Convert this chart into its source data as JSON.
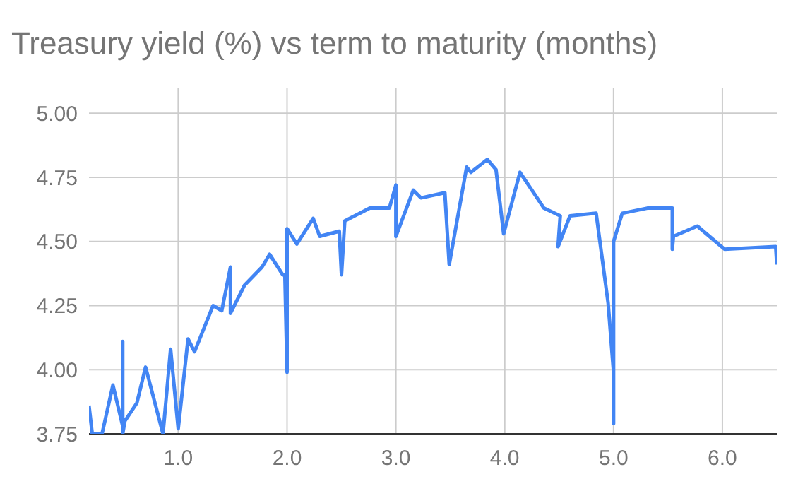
{
  "chart_data": {
    "type": "line",
    "title": "Treasury yield (%) vs term to maturity (months)",
    "series": [
      {
        "color": "#4285f4",
        "x": [
          0.18,
          0.21,
          0.3,
          0.4,
          0.49,
          0.49,
          0.49,
          0.51,
          0.62,
          0.7,
          0.86,
          0.93,
          1.0,
          1.09,
          1.15,
          1.32,
          1.4,
          1.48,
          1.48,
          1.61,
          1.77,
          1.84,
          1.96,
          1.98,
          2.0,
          2.0,
          2.09,
          2.24,
          2.3,
          2.48,
          2.5,
          2.53,
          2.76,
          2.94,
          3.0,
          3.0,
          3.16,
          3.23,
          3.45,
          3.49,
          3.65,
          3.69,
          3.84,
          3.92,
          3.99,
          4.14,
          4.36,
          4.51,
          4.49,
          4.6,
          4.84,
          4.95,
          5.0,
          5.0,
          5.0,
          5.08,
          5.31,
          5.54,
          5.54,
          5.55,
          5.77,
          6.02,
          6.49,
          6.5
        ],
        "values": [
          3.86,
          3.75,
          3.75,
          3.94,
          3.78,
          4.11,
          3.75,
          3.8,
          3.87,
          4.01,
          3.75,
          4.08,
          3.77,
          4.12,
          4.07,
          4.25,
          4.23,
          4.4,
          4.22,
          4.33,
          4.4,
          4.45,
          4.37,
          4.37,
          3.99,
          4.55,
          4.49,
          4.59,
          4.52,
          4.54,
          4.37,
          4.58,
          4.63,
          4.63,
          4.72,
          4.52,
          4.7,
          4.67,
          4.69,
          4.41,
          4.79,
          4.77,
          4.82,
          4.78,
          4.53,
          4.77,
          4.63,
          4.6,
          4.48,
          4.6,
          4.61,
          4.26,
          3.99,
          3.79,
          4.5,
          4.61,
          4.63,
          4.63,
          4.47,
          4.52,
          4.56,
          4.47,
          4.48,
          4.41
        ]
      }
    ],
    "xlim": [
      0.18,
      6.5
    ],
    "xticks": [
      {
        "value": 1,
        "label": "1.0"
      },
      {
        "value": 2,
        "label": "2.0"
      },
      {
        "value": 3,
        "label": "3.0"
      },
      {
        "value": 4,
        "label": "4.0"
      },
      {
        "value": 5,
        "label": "5.0"
      },
      {
        "value": 6,
        "label": "6.0"
      }
    ],
    "ylim": [
      3.75,
      5.1
    ],
    "yticks": [
      {
        "value": 3.75,
        "label": "3.75"
      },
      {
        "value": 4,
        "label": "4.00"
      },
      {
        "value": 4.25,
        "label": "4.25"
      },
      {
        "value": 4.5,
        "label": "4.50"
      },
      {
        "value": 4.75,
        "label": "4.75"
      },
      {
        "value": 5,
        "label": "5.00"
      }
    ],
    "grid": true
  }
}
